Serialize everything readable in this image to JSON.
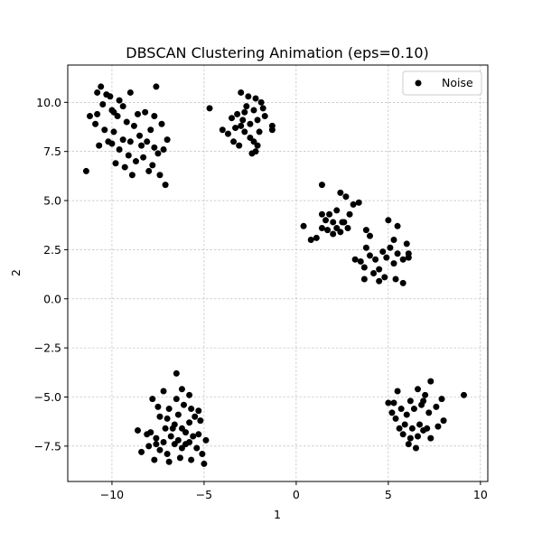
{
  "chart_data": {
    "type": "scatter",
    "title": "DBSCAN Clustering Animation (eps=0.10)",
    "xlabel": "1",
    "ylabel": "2",
    "xlim": [
      -12.4,
      10.4
    ],
    "ylim": [
      -9.3,
      11.9
    ],
    "xticks": [
      -10,
      -5,
      0,
      5,
      10
    ],
    "yticks": [
      -7.5,
      -5.0,
      -2.5,
      0.0,
      2.5,
      5.0,
      7.5,
      10.0
    ],
    "xtick_labels": [
      "−10",
      "−5",
      "0",
      "5",
      "10"
    ],
    "ytick_labels": [
      "−7.5",
      "−5.0",
      "−2.5",
      "0.0",
      "2.5",
      "5.0",
      "7.5",
      "10.0"
    ],
    "grid": true,
    "legend_position": "top-right",
    "series": [
      {
        "name": "Noise",
        "color": "#000000",
        "points": [
          [
            -10.8,
            10.5
          ],
          [
            -10.6,
            10.8
          ],
          [
            -10.1,
            10.3
          ],
          [
            -9.6,
            10.1
          ],
          [
            -9.0,
            10.5
          ],
          [
            -7.6,
            10.8
          ],
          [
            -11.2,
            9.3
          ],
          [
            -10.8,
            9.4
          ],
          [
            -10.5,
            9.9
          ],
          [
            -10.0,
            9.6
          ],
          [
            -9.7,
            9.3
          ],
          [
            -9.2,
            9.0
          ],
          [
            -8.6,
            9.4
          ],
          [
            -8.2,
            9.5
          ],
          [
            -7.7,
            9.3
          ],
          [
            -7.3,
            8.9
          ],
          [
            -10.9,
            8.9
          ],
          [
            -10.4,
            8.6
          ],
          [
            -9.9,
            8.5
          ],
          [
            -9.4,
            8.1
          ],
          [
            -9.0,
            8.0
          ],
          [
            -8.5,
            8.3
          ],
          [
            -8.1,
            8.0
          ],
          [
            -7.7,
            7.7
          ],
          [
            -7.2,
            7.6
          ],
          [
            -7.0,
            8.1
          ],
          [
            -10.0,
            7.9
          ],
          [
            -9.6,
            7.6
          ],
          [
            -9.1,
            7.3
          ],
          [
            -8.7,
            7.0
          ],
          [
            -8.3,
            7.2
          ],
          [
            -7.8,
            6.8
          ],
          [
            -7.4,
            6.3
          ],
          [
            -7.1,
            5.8
          ],
          [
            -11.4,
            6.5
          ],
          [
            -10.7,
            7.8
          ],
          [
            -9.8,
            6.9
          ],
          [
            -9.3,
            6.7
          ],
          [
            -8.9,
            6.3
          ],
          [
            -8.4,
            7.8
          ],
          [
            -10.3,
            10.4
          ],
          [
            -10.2,
            8.0
          ],
          [
            -9.4,
            9.8
          ],
          [
            -8.8,
            8.8
          ],
          [
            -7.9,
            8.6
          ],
          [
            -7.5,
            7.4
          ],
          [
            -9.9,
            9.5
          ],
          [
            -8.0,
            6.5
          ],
          [
            -3.0,
            10.5
          ],
          [
            -2.6,
            10.3
          ],
          [
            -2.2,
            10.2
          ],
          [
            -1.9,
            10.0
          ],
          [
            -2.7,
            9.8
          ],
          [
            -2.3,
            9.6
          ],
          [
            -3.5,
            9.2
          ],
          [
            -3.2,
            9.4
          ],
          [
            -2.9,
            9.1
          ],
          [
            -2.5,
            8.9
          ],
          [
            -2.1,
            9.1
          ],
          [
            -1.7,
            9.3
          ],
          [
            -1.3,
            8.8
          ],
          [
            -1.3,
            8.6
          ],
          [
            -4.7,
            9.7
          ],
          [
            -4.0,
            8.6
          ],
          [
            -3.7,
            8.4
          ],
          [
            -3.3,
            8.7
          ],
          [
            -3.0,
            8.8
          ],
          [
            -2.8,
            8.5
          ],
          [
            -2.5,
            8.2
          ],
          [
            -2.3,
            8.0
          ],
          [
            -2.1,
            7.8
          ],
          [
            -2.4,
            7.4
          ],
          [
            -3.4,
            8.0
          ],
          [
            -2.8,
            9.5
          ],
          [
            -1.8,
            9.7
          ],
          [
            -2.0,
            8.5
          ],
          [
            -3.1,
            7.8
          ],
          [
            -2.2,
            7.5
          ],
          [
            0.4,
            3.7
          ],
          [
            0.8,
            3.0
          ],
          [
            1.1,
            3.1
          ],
          [
            1.4,
            3.6
          ],
          [
            1.6,
            4.0
          ],
          [
            1.4,
            4.3
          ],
          [
            1.4,
            5.8
          ],
          [
            1.8,
            4.3
          ],
          [
            2.0,
            3.9
          ],
          [
            2.2,
            3.6
          ],
          [
            2.4,
            3.4
          ],
          [
            2.6,
            3.9
          ],
          [
            2.2,
            4.5
          ],
          [
            2.4,
            5.4
          ],
          [
            2.7,
            5.2
          ],
          [
            2.9,
            4.3
          ],
          [
            3.1,
            4.8
          ],
          [
            3.4,
            4.9
          ],
          [
            2.0,
            3.3
          ],
          [
            2.5,
            3.9
          ],
          [
            2.8,
            3.6
          ],
          [
            1.7,
            3.5
          ],
          [
            3.2,
            2.0
          ],
          [
            3.5,
            1.9
          ],
          [
            3.7,
            1.6
          ],
          [
            3.8,
            2.6
          ],
          [
            4.0,
            2.2
          ],
          [
            4.3,
            2.0
          ],
          [
            4.5,
            1.5
          ],
          [
            4.7,
            2.4
          ],
          [
            4.9,
            2.1
          ],
          [
            5.1,
            2.6
          ],
          [
            5.3,
            1.8
          ],
          [
            5.5,
            2.3
          ],
          [
            5.8,
            2.0
          ],
          [
            6.1,
            2.3
          ],
          [
            3.8,
            3.5
          ],
          [
            4.0,
            3.2
          ],
          [
            5.0,
            4.0
          ],
          [
            5.3,
            3.0
          ],
          [
            5.5,
            3.7
          ],
          [
            6.0,
            2.8
          ],
          [
            3.7,
            1.0
          ],
          [
            4.2,
            1.3
          ],
          [
            4.5,
            0.9
          ],
          [
            4.8,
            1.1
          ],
          [
            5.4,
            1.0
          ],
          [
            5.8,
            0.8
          ],
          [
            6.1,
            2.1
          ],
          [
            -6.5,
            -3.8
          ],
          [
            -6.2,
            -4.6
          ],
          [
            -5.8,
            -4.9
          ],
          [
            -7.2,
            -4.7
          ],
          [
            -7.8,
            -5.1
          ],
          [
            -7.5,
            -5.5
          ],
          [
            -6.9,
            -5.6
          ],
          [
            -6.5,
            -5.1
          ],
          [
            -6.1,
            -5.4
          ],
          [
            -5.7,
            -5.6
          ],
          [
            -5.3,
            -5.7
          ],
          [
            -7.4,
            -6.0
          ],
          [
            -7.0,
            -6.1
          ],
          [
            -6.6,
            -6.4
          ],
          [
            -6.2,
            -6.6
          ],
          [
            -5.8,
            -6.3
          ],
          [
            -5.2,
            -6.2
          ],
          [
            -8.6,
            -6.7
          ],
          [
            -8.1,
            -6.9
          ],
          [
            -7.6,
            -7.1
          ],
          [
            -7.2,
            -7.3
          ],
          [
            -6.8,
            -7.0
          ],
          [
            -6.4,
            -7.2
          ],
          [
            -6.0,
            -6.8
          ],
          [
            -5.6,
            -7.0
          ],
          [
            -5.3,
            -6.9
          ],
          [
            -8.0,
            -7.5
          ],
          [
            -7.4,
            -7.7
          ],
          [
            -7.0,
            -7.9
          ],
          [
            -6.6,
            -7.4
          ],
          [
            -6.2,
            -7.6
          ],
          [
            -5.8,
            -7.3
          ],
          [
            -5.4,
            -7.6
          ],
          [
            -4.9,
            -7.2
          ],
          [
            -8.4,
            -7.8
          ],
          [
            -7.7,
            -8.2
          ],
          [
            -6.9,
            -8.3
          ],
          [
            -6.3,
            -8.1
          ],
          [
            -5.7,
            -8.2
          ],
          [
            -5.0,
            -8.4
          ],
          [
            -7.1,
            -6.6
          ],
          [
            -6.4,
            -5.9
          ],
          [
            -5.5,
            -6.0
          ],
          [
            -7.9,
            -6.8
          ],
          [
            -6.7,
            -6.6
          ],
          [
            -6.0,
            -7.4
          ],
          [
            -5.1,
            -7.9
          ],
          [
            -7.6,
            -7.4
          ],
          [
            5.5,
            -4.7
          ],
          [
            6.2,
            -5.2
          ],
          [
            6.6,
            -4.6
          ],
          [
            7.0,
            -4.9
          ],
          [
            7.3,
            -4.2
          ],
          [
            7.9,
            -5.1
          ],
          [
            9.1,
            -4.9
          ],
          [
            5.3,
            -5.3
          ],
          [
            5.7,
            -5.6
          ],
          [
            6.0,
            -5.9
          ],
          [
            6.4,
            -5.6
          ],
          [
            6.8,
            -5.4
          ],
          [
            7.2,
            -5.8
          ],
          [
            7.6,
            -5.5
          ],
          [
            5.4,
            -6.1
          ],
          [
            5.9,
            -6.4
          ],
          [
            6.3,
            -6.6
          ],
          [
            6.7,
            -6.4
          ],
          [
            7.1,
            -6.6
          ],
          [
            7.7,
            -6.5
          ],
          [
            8.0,
            -6.2
          ],
          [
            5.6,
            -6.6
          ],
          [
            5.8,
            -6.9
          ],
          [
            6.2,
            -7.1
          ],
          [
            6.6,
            -7.0
          ],
          [
            6.9,
            -6.7
          ],
          [
            7.3,
            -7.1
          ],
          [
            6.1,
            -7.4
          ],
          [
            6.5,
            -7.6
          ],
          [
            5.2,
            -5.8
          ],
          [
            5.0,
            -5.3
          ],
          [
            6.9,
            -5.2
          ]
        ]
      }
    ]
  }
}
